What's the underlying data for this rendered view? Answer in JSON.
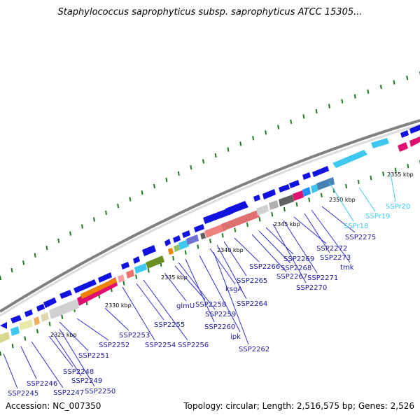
{
  "title": "Staphylococcus saprophyticus subsp. saprophyticus ATCC 15305...",
  "footer": {
    "accession": "Accession: NC_007350",
    "summary": "Topology: circular; Length: 2,516,575 bp; Genes: 2,526"
  },
  "colors": {
    "backbone": "#808080",
    "gene_default": "#1212e0",
    "rna": "#3ec8f0",
    "label": "#1a1aa0",
    "rna_label": "#3ec8f0",
    "tick": "#1f7a1f"
  },
  "kbp_labels": [
    "2325 kbp",
    "2330 kbp",
    "2335 kbp",
    "2340 kbp",
    "2345 kbp",
    "2350 kbp",
    "2355 kbp"
  ],
  "gene_labels": [
    "SSP2245",
    "SSP2246",
    "SSP2247",
    "SSP2248",
    "SSP2249",
    "SSP2250",
    "SSP2251",
    "SSP2252",
    "SSP2253",
    "SSP2254",
    "SSP2255",
    "SSP2256",
    "glmU",
    "SSP2258",
    "SSP2259",
    "SSP2260",
    "ipk",
    "SSP2262",
    "ksgA",
    "SSP2264",
    "SSP2265",
    "SSP2266",
    "SSP2267",
    "SSP2268",
    "SSP2269",
    "SSP2270",
    "SSP2271",
    "SSP2272",
    "SSP2273",
    "tmk",
    "SSP2275"
  ],
  "rna_labels": [
    "SSPr18",
    "SSPr19",
    "SSPr20"
  ]
}
